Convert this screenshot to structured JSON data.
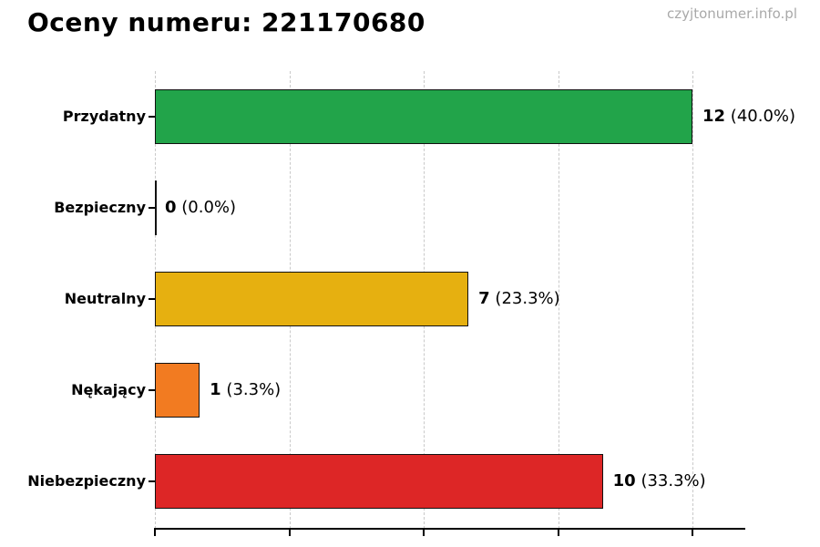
{
  "page": {
    "watermark": "czyjtonumer.info.pl"
  },
  "chart_data": {
    "type": "bar",
    "orientation": "horizontal",
    "title": "Oceny numeru: 221170680",
    "categories": [
      "Przydatny",
      "Bezpieczny",
      "Neutralny",
      "Nękający",
      "Niebezpieczny"
    ],
    "values": [
      12,
      0,
      7,
      1,
      10
    ],
    "value_labels": [
      "12",
      "0",
      "7",
      "1",
      "10"
    ],
    "percent_labels": [
      "(40.0%)",
      "(0.0%)",
      "(23.3%)",
      "(3.3%)",
      "(33.3%)"
    ],
    "bar_colors": [
      "#22a44a",
      "#cccccc",
      "#e6b010",
      "#f27b21",
      "#dd2626"
    ],
    "bar_edge_color": "#111111",
    "xlim": [
      0,
      13.2
    ],
    "x_ticks": [
      0,
      3,
      6,
      9,
      12
    ],
    "grid": "vertical-dashed",
    "xlabel": "",
    "ylabel": "",
    "x_tick_labels_visible": false
  }
}
